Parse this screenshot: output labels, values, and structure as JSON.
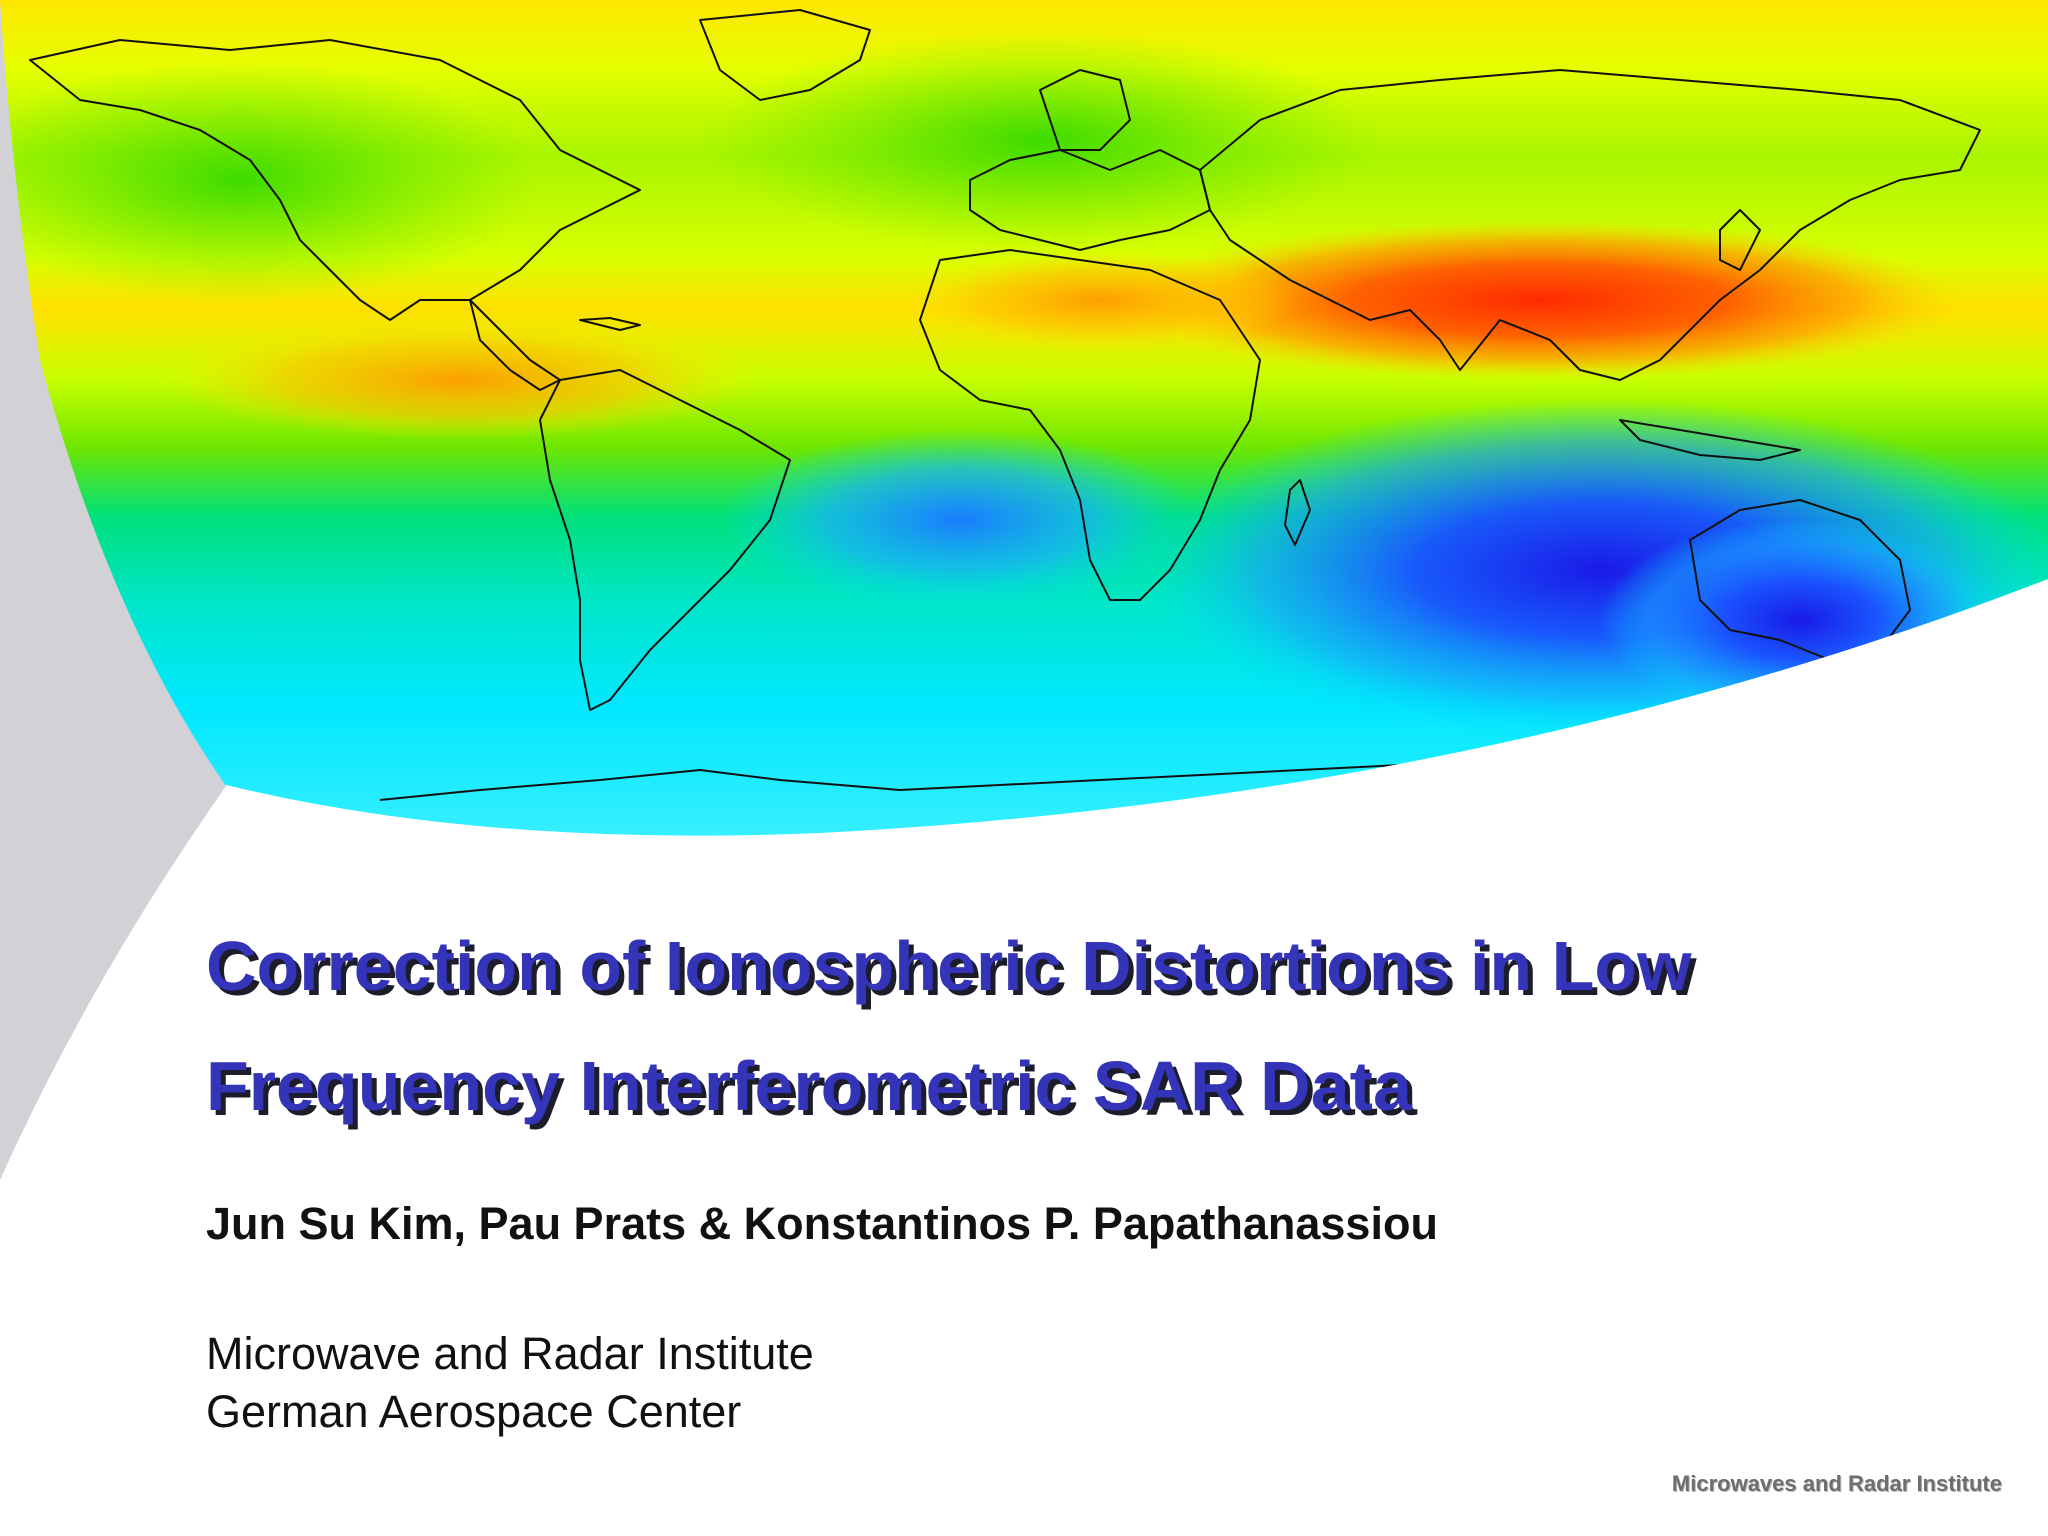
{
  "slide": {
    "title_lines": [
      "Correction of Ionospheric Distortions in Low",
      "Frequency Interferometric SAR Data"
    ],
    "authors": "Jun Su Kim, Pau Prats & Konstantinos P. Papathanassiou",
    "affiliation_lines": [
      "Microwave and Radar Institute",
      "German Aerospace Center"
    ],
    "footer": "Microwaves and Radar Institute"
  },
  "colors": {
    "title": "#3434b8",
    "title_shadow": "#1c1c2a",
    "body_text": "#111111",
    "footer_text": "#6e6e6e",
    "side_panel_gray": "#d2d1d6",
    "map_palette": [
      "#ff2a00",
      "#ff8a00",
      "#ffe600",
      "#c8ff00",
      "#5de600",
      "#00e0a0",
      "#00e8ff",
      "#1a6cff",
      "#1a1ae8"
    ]
  },
  "map": {
    "description_icon": "ionosphere-tec-world-map-icon"
  }
}
